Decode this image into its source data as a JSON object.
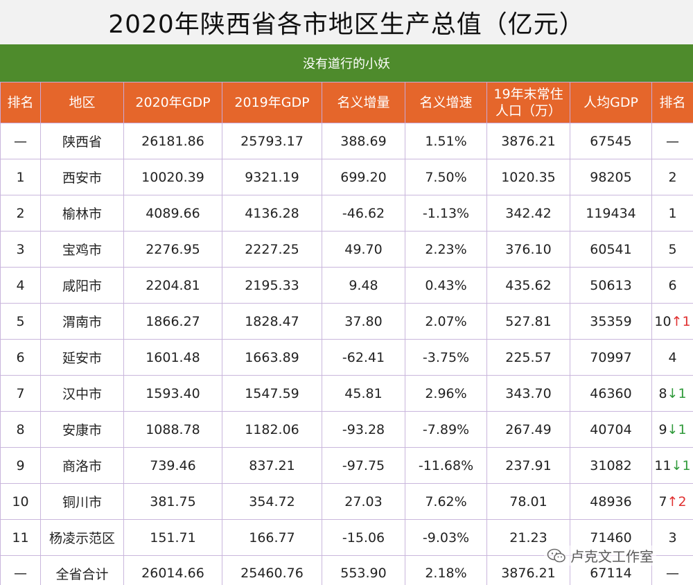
{
  "title": "2020年陕西省各市地区生产总值（亿元）",
  "subtitle": "没有道行的小妖",
  "colors": {
    "header_bg": "#e5662b",
    "subtitle_bg": "#4e8b2c",
    "gdp_text": "#8a4a1e",
    "arrow_up": "#e03030",
    "arrow_down": "#2f9a3a"
  },
  "headers": [
    "排名",
    "地区",
    "2020年GDP",
    "2019年GDP",
    "名义增量",
    "名义增速",
    "19年末常住人口（万）",
    "人均GDP",
    "排名"
  ],
  "rows": [
    {
      "rank": "—",
      "region": "陕西省",
      "gdp2020": "26181.86",
      "gdp2019": "25793.17",
      "increase": "388.69",
      "growth": "1.51%",
      "population": "3876.21",
      "per_capita": "67545",
      "pc_rank": "—",
      "change": "",
      "dir": ""
    },
    {
      "rank": "1",
      "region": "西安市",
      "gdp2020": "10020.39",
      "gdp2019": "9321.19",
      "increase": "699.20",
      "growth": "7.50%",
      "population": "1020.35",
      "per_capita": "98205",
      "pc_rank": "2",
      "change": "",
      "dir": ""
    },
    {
      "rank": "2",
      "region": "榆林市",
      "gdp2020": "4089.66",
      "gdp2019": "4136.28",
      "increase": "-46.62",
      "growth": "-1.13%",
      "population": "342.42",
      "per_capita": "119434",
      "pc_rank": "1",
      "change": "",
      "dir": ""
    },
    {
      "rank": "3",
      "region": "宝鸡市",
      "gdp2020": "2276.95",
      "gdp2019": "2227.25",
      "increase": "49.70",
      "growth": "2.23%",
      "population": "376.10",
      "per_capita": "60541",
      "pc_rank": "5",
      "change": "",
      "dir": ""
    },
    {
      "rank": "4",
      "region": "咸阳市",
      "gdp2020": "2204.81",
      "gdp2019": "2195.33",
      "increase": "9.48",
      "growth": "0.43%",
      "population": "435.62",
      "per_capita": "50613",
      "pc_rank": "6",
      "change": "",
      "dir": ""
    },
    {
      "rank": "5",
      "region": "渭南市",
      "gdp2020": "1866.27",
      "gdp2019": "1828.47",
      "increase": "37.80",
      "growth": "2.07%",
      "population": "527.81",
      "per_capita": "35359",
      "pc_rank": "10",
      "change": "↑1",
      "dir": "up"
    },
    {
      "rank": "6",
      "region": "延安市",
      "gdp2020": "1601.48",
      "gdp2019": "1663.89",
      "increase": "-62.41",
      "growth": "-3.75%",
      "population": "225.57",
      "per_capita": "70997",
      "pc_rank": "4",
      "change": "",
      "dir": ""
    },
    {
      "rank": "7",
      "region": "汉中市",
      "gdp2020": "1593.40",
      "gdp2019": "1547.59",
      "increase": "45.81",
      "growth": "2.96%",
      "population": "343.70",
      "per_capita": "46360",
      "pc_rank": "8",
      "change": "↓1",
      "dir": "down"
    },
    {
      "rank": "8",
      "region": "安康市",
      "gdp2020": "1088.78",
      "gdp2019": "1182.06",
      "increase": "-93.28",
      "growth": "-7.89%",
      "population": "267.49",
      "per_capita": "40704",
      "pc_rank": "9",
      "change": "↓1",
      "dir": "down"
    },
    {
      "rank": "9",
      "region": "商洛市",
      "gdp2020": "739.46",
      "gdp2019": "837.21",
      "increase": "-97.75",
      "growth": "-11.68%",
      "population": "237.91",
      "per_capita": "31082",
      "pc_rank": "11",
      "change": "↓1",
      "dir": "down"
    },
    {
      "rank": "10",
      "region": "铜川市",
      "gdp2020": "381.75",
      "gdp2019": "354.72",
      "increase": "27.03",
      "growth": "7.62%",
      "population": "78.01",
      "per_capita": "48936",
      "pc_rank": "7",
      "change": "↑2",
      "dir": "up"
    },
    {
      "rank": "11",
      "region": "杨凌示范区",
      "gdp2020": "151.71",
      "gdp2019": "166.77",
      "increase": "-15.06",
      "growth": "-9.03%",
      "population": "21.23",
      "per_capita": "71460",
      "pc_rank": "3",
      "change": "",
      "dir": ""
    },
    {
      "rank": "—",
      "region": "全省合计",
      "gdp2020": "26014.66",
      "gdp2019": "25460.76",
      "increase": "553.90",
      "growth": "2.18%",
      "population": "3876.21",
      "per_capita": "67114",
      "pc_rank": "—",
      "change": "",
      "dir": ""
    }
  ],
  "watermark": {
    "text": "卢克文工作室",
    "icon": "wechat-icon"
  }
}
